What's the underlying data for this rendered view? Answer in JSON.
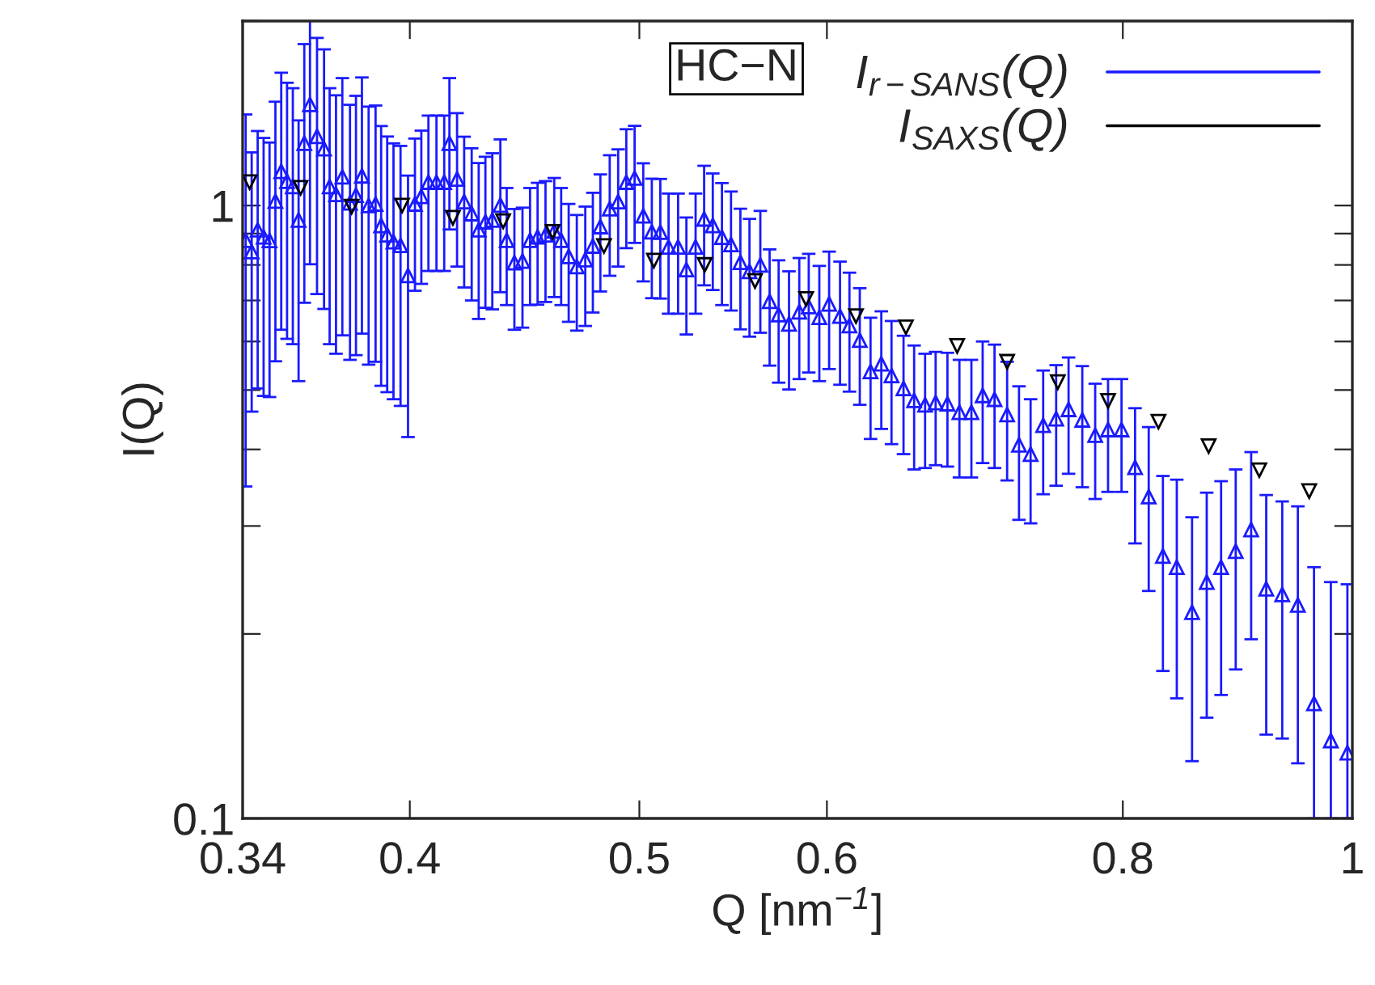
{
  "chart_data": {
    "type": "scatter",
    "xlabel": "Q [nm$^{−1}$]",
    "ylabel": "I(Q)",
    "log": "xy",
    "legend": "top right",
    "annotations": [
      "HC−N"
    ],
    "xlim": [
      0.34,
      1
    ],
    "xticks": [
      0.34,
      0.4,
      0.5,
      0.6,
      0.8,
      1
    ],
    "ylim": [
      0.1,
      2
    ],
    "yticks": [
      0.1,
      {
        "value": 0.2,
        "label": null
      },
      {
        "value": 0.3,
        "label": null
      },
      {
        "value": 0.4,
        "label": null
      },
      {
        "value": 0.5,
        "label": null
      },
      {
        "value": 0.6,
        "label": null
      },
      {
        "value": 0.7,
        "label": null
      },
      {
        "value": 0.8,
        "label": null
      },
      {
        "value": 0.9,
        "label": null
      },
      1,
      {
        "value": 2,
        "label": null
      }
    ],
    "series": [
      {
        "name": "I$_{r−SANS}$(Q)",
        "color": "#1a1aff",
        "marker": "triangle",
        "x": [
          0.341,
          0.343,
          0.345,
          0.347,
          0.349,
          0.351,
          0.353,
          0.355,
          0.357,
          0.359,
          0.361,
          0.363,
          0.3655,
          0.368,
          0.37,
          0.3723,
          0.3746,
          0.3774,
          0.3796,
          0.3818,
          0.3843,
          0.3869,
          0.389,
          0.3913,
          0.3937,
          0.3964,
          0.3993,
          0.402,
          0.4045,
          0.4073,
          0.4105,
          0.4136,
          0.4157,
          0.4188,
          0.4217,
          0.4248,
          0.4277,
          0.4305,
          0.4334,
          0.4368,
          0.4395,
          0.4428,
          0.4463,
          0.4496,
          0.4529,
          0.4564,
          0.4603,
          0.4634,
          0.4668,
          0.4705,
          0.4744,
          0.4779,
          0.4814,
          0.4858,
          0.4898,
          0.4937,
          0.4977,
          0.5019,
          0.5061,
          0.5103,
          0.5144,
          0.5192,
          0.5234,
          0.5281,
          0.5325,
          0.537,
          0.5418,
          0.5466,
          0.5516,
          0.5565,
          0.5624,
          0.5675,
          0.5725,
          0.5783,
          0.5841,
          0.5895,
          0.5956,
          0.6013,
          0.6077,
          0.6133,
          0.6195,
          0.626,
          0.6326,
          0.6389,
          0.6464,
          0.6531,
          0.6601,
          0.6669,
          0.6746,
          0.6825,
          0.6905,
          0.6981,
          0.7062,
          0.7149,
          0.7232,
          0.7314,
          0.7404,
          0.7498,
          0.7589,
          0.7691,
          0.7788,
          0.7886,
          0.799,
          0.8096,
          0.8204,
          0.8318,
          0.8431,
          0.8557,
          0.868,
          0.8802,
          0.8928,
          0.9063,
          0.9197,
          0.9341,
          0.9484,
          0.9634,
          0.9793,
          0.9952
        ],
        "values": [
          0.878,
          0.841,
          0.913,
          0.889,
          0.877,
          1.017,
          1.137,
          1.096,
          1.074,
          0.947,
          1.264,
          1.462,
          1.297,
          1.238,
          1.074,
          1.043,
          1.114,
          1.01,
          1.04,
          1.118,
          1.0,
          1.006,
          0.928,
          0.896,
          0.873,
          0.861,
          0.769,
          1.006,
          1.035,
          1.092,
          1.092,
          1.092,
          1.264,
          1.105,
          1.015,
          0.97,
          0.913,
          0.941,
          0.947,
          1.002,
          0.878,
          0.807,
          0.812,
          0.878,
          0.889,
          0.896,
          0.909,
          0.878,
          0.826,
          0.795,
          0.816,
          0.859,
          0.924,
          0.988,
          1.015,
          1.092,
          1.109,
          0.962,
          0.906,
          0.905,
          0.856,
          0.856,
          0.786,
          0.856,
          0.951,
          0.928,
          0.888,
          0.864,
          0.808,
          0.781,
          0.8,
          0.698,
          0.664,
          0.641,
          0.671,
          0.684,
          0.657,
          0.691,
          0.66,
          0.637,
          0.603,
          0.536,
          0.552,
          0.528,
          0.503,
          0.481,
          0.473,
          0.477,
          0.475,
          0.46,
          0.46,
          0.49,
          0.483,
          0.456,
          0.407,
          0.393,
          0.438,
          0.449,
          0.465,
          0.447,
          0.422,
          0.431,
          0.431,
          0.374,
          0.335,
          0.268,
          0.257,
          0.217,
          0.243,
          0.257,
          0.273,
          0.296,
          0.237,
          0.232,
          0.223,
          0.154,
          0.134,
          0.128
        ],
        "errors": [
          0.53,
          0.38,
          0.41,
          0.4,
          0.39,
          0.46,
          0.51,
          0.49,
          0.48,
          0.43,
          0.57,
          0.66,
          0.58,
          0.56,
          0.48,
          0.47,
          0.5,
          0.45,
          0.47,
          0.5,
          0.45,
          0.45,
          0.42,
          0.4,
          0.39,
          0.39,
          0.35,
          0.28,
          0.29,
          0.31,
          0.31,
          0.31,
          0.35,
          0.31,
          0.28,
          0.27,
          0.26,
          0.26,
          0.27,
          0.28,
          0.19,
          0.18,
          0.18,
          0.19,
          0.2,
          0.2,
          0.2,
          0.19,
          0.18,
          0.17,
          0.18,
          0.19,
          0.2,
          0.22,
          0.22,
          0.24,
          0.24,
          0.21,
          0.2,
          0.2,
          0.19,
          0.19,
          0.17,
          0.19,
          0.21,
          0.2,
          0.2,
          0.19,
          0.18,
          0.17,
          0.18,
          0.15,
          0.15,
          0.14,
          0.15,
          0.15,
          0.14,
          0.15,
          0.15,
          0.14,
          0.13,
          0.12,
          0.12,
          0.12,
          0.11,
          0.11,
          0.1,
          0.1,
          0.1,
          0.1,
          0.1,
          0.11,
          0.11,
          0.1,
          0.1,
          0.09,
          0.1,
          0.1,
          0.1,
          0.1,
          0.09,
          0.09,
          0.09,
          0.093,
          0.1,
          0.094,
          0.1,
          0.093,
          0.097,
          0.098,
          0.098,
          0.1,
          0.1,
          0.097,
          0.1,
          [
            0.1,
            0.257
          ],
          [
            0.1,
            0.243
          ],
          [
            0.1,
            0.241
          ]
        ]
      },
      {
        "name": "I$_{SAXS}$(Q)",
        "color": "#000000",
        "marker": "triangle_down",
        "x": [
          0.3423,
          0.3597,
          0.378,
          0.397,
          0.4171,
          0.438,
          0.4596,
          0.4831,
          0.5071,
          0.5328,
          0.5595,
          0.588,
          0.6172,
          0.6479,
          0.681,
          0.7149,
          0.751,
          0.7886,
          0.8282,
          0.8696,
          0.9135,
          0.9589
        ],
        "values": [
          1.092,
          1.069,
          0.996,
          1.0,
          0.955,
          0.943,
          0.906,
          0.859,
          0.813,
          0.8,
          0.753,
          0.704,
          0.66,
          0.633,
          0.59,
          0.556,
          0.515,
          0.48,
          0.444,
          0.405,
          0.37,
          0.342
        ]
      }
    ]
  }
}
